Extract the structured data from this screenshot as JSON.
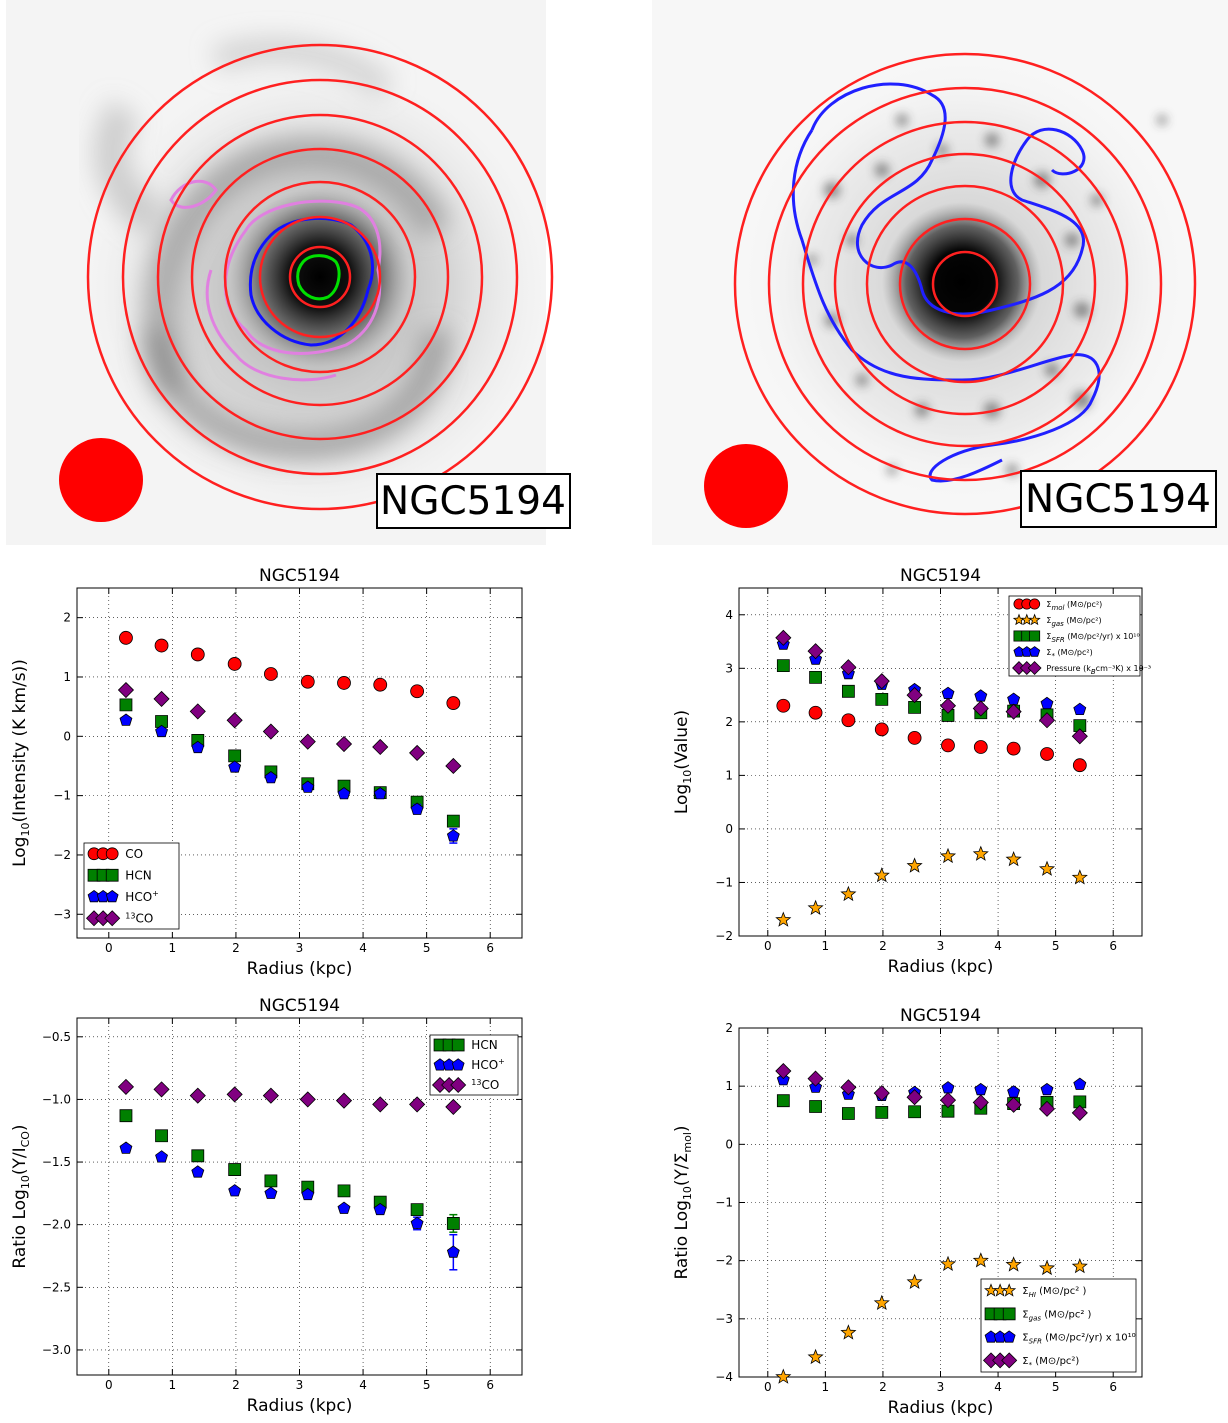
{
  "maps": [
    {
      "galaxy_label": "NGC5194",
      "contours": [
        "green",
        "blue",
        "violet"
      ]
    },
    {
      "galaxy_label": "NGC5194",
      "contours": [
        "blue"
      ]
    }
  ],
  "colors": {
    "co": "#ff0000",
    "hcn": "#008000",
    "hco": "#0000ff",
    "c13o": "#800080",
    "star": "#ffa500",
    "ring": "#ff0000"
  },
  "chart_data": [
    {
      "type": "scatter",
      "title": "NGC5194",
      "xlabel": "Radius (kpc)",
      "ylabel_main": "Log",
      "ylabel_sub": "10",
      "ylabel_rest": "(Intensity (K km/s))",
      "xlim": [
        -0.5,
        6.5
      ],
      "ylim": [
        -3.4,
        2.5
      ],
      "xticks": [
        "0",
        "1",
        "2",
        "3",
        "4",
        "5",
        "6"
      ],
      "yticks": [
        "2",
        "1",
        "0",
        "−1",
        "−2",
        "−3"
      ],
      "ytick_values": [
        2,
        1,
        0,
        -1,
        -2,
        -3
      ],
      "grid": true,
      "legend_position": "lower-left",
      "x": [
        0.27,
        0.83,
        1.4,
        1.98,
        2.55,
        3.13,
        3.7,
        4.27,
        4.85,
        5.42
      ],
      "series": [
        {
          "name": "CO",
          "marker": "circle",
          "color": "#ff0000",
          "values": [
            1.66,
            1.53,
            1.38,
            1.22,
            1.05,
            0.92,
            0.9,
            0.87,
            0.76,
            0.56
          ]
        },
        {
          "name": "HCN",
          "marker": "square",
          "color": "#008000",
          "values": [
            0.53,
            0.25,
            -0.07,
            -0.33,
            -0.6,
            -0.8,
            -0.84,
            -0.95,
            -1.11,
            -1.43
          ]
        },
        {
          "name": "HCO",
          "name_sup": "+",
          "marker": "pentagon",
          "color": "#0000ff",
          "values": [
            0.27,
            0.08,
            -0.19,
            -0.52,
            -0.7,
            -0.86,
            -0.97,
            -0.97,
            -1.23,
            -1.68
          ],
          "errors": [
            0,
            0,
            0,
            0,
            0,
            0,
            0,
            0,
            0.08,
            0.12
          ]
        },
        {
          "name": "CO",
          "name_pre": "13",
          "marker": "diamond",
          "color": "#800080",
          "values": [
            0.78,
            0.63,
            0.42,
            0.27,
            0.08,
            -0.09,
            -0.13,
            -0.18,
            -0.28,
            -0.5
          ]
        }
      ]
    },
    {
      "type": "scatter",
      "title": "NGC5194",
      "xlabel": "Radius (kpc)",
      "ylabel_main": "Log",
      "ylabel_sub": "10",
      "ylabel_rest": "(Value)",
      "xlim": [
        -0.5,
        6.5
      ],
      "ylim": [
        -2,
        4.5
      ],
      "xticks": [
        "0",
        "1",
        "2",
        "3",
        "4",
        "5",
        "6"
      ],
      "yticks": [
        "4",
        "3",
        "2",
        "1",
        "0",
        "−1",
        "−2"
      ],
      "ytick_values": [
        4,
        3,
        2,
        1,
        0,
        -1,
        -2
      ],
      "grid": true,
      "legend_position": "top-right",
      "x": [
        0.27,
        0.83,
        1.4,
        1.98,
        2.55,
        3.13,
        3.7,
        4.27,
        4.85,
        5.42
      ],
      "series": [
        {
          "name": "Σ",
          "name_sub": "mol",
          "name_rest": " (M⊙/pc²)",
          "marker": "circle",
          "color": "#ff0000",
          "values": [
            2.3,
            2.17,
            2.03,
            1.86,
            1.7,
            1.56,
            1.53,
            1.5,
            1.4,
            1.19
          ]
        },
        {
          "name": "Σ",
          "name_sub": "gas",
          "name_rest": " (M⊙/pc²)",
          "marker": "star",
          "color": "#ffa500",
          "values": [
            -1.7,
            -1.48,
            -1.22,
            -0.87,
            -0.69,
            -0.51,
            -0.47,
            -0.57,
            -0.75,
            -0.91
          ]
        },
        {
          "name": "Σ",
          "name_sub": "SFR",
          "name_rest": " (M⊙/pc²/yr) x 10¹⁰",
          "marker": "square",
          "color": "#008000",
          "values": [
            3.05,
            2.83,
            2.57,
            2.42,
            2.27,
            2.12,
            2.17,
            2.2,
            2.13,
            1.93
          ]
        },
        {
          "name": "Σ",
          "name_sub": "*",
          "name_rest": " (M⊙/pc²)",
          "marker": "pentagon",
          "color": "#0000ff",
          "values": [
            3.45,
            3.17,
            2.9,
            2.7,
            2.6,
            2.53,
            2.48,
            2.42,
            2.34,
            2.23
          ]
        },
        {
          "name": "Pressure (k",
          "name_sub": "B",
          "name_rest": "cm⁻³K) x 10⁻³",
          "marker": "diamond",
          "color": "#800080",
          "values": [
            3.57,
            3.32,
            3.02,
            2.76,
            2.5,
            2.3,
            2.25,
            2.19,
            2.03,
            1.73
          ]
        }
      ]
    },
    {
      "type": "scatter",
      "title": "NGC5194",
      "xlabel": "Radius (kpc)",
      "ylabel_main": "Ratio Log",
      "ylabel_sub": "10",
      "ylabel_rest": "(Y/I",
      "ylabel_rest_sub": "CO",
      "ylabel_close": ")",
      "xlim": [
        -0.5,
        6.5
      ],
      "ylim": [
        -3.2,
        -0.35
      ],
      "xticks": [
        "0",
        "1",
        "2",
        "3",
        "4",
        "5",
        "6"
      ],
      "yticks": [
        "−0.5",
        "−1.0",
        "−1.5",
        "−2.0",
        "−2.5",
        "−3.0"
      ],
      "ytick_values": [
        -0.5,
        -1.0,
        -1.5,
        -2.0,
        -2.5,
        -3.0
      ],
      "grid": true,
      "legend_position": "top-right",
      "x": [
        0.27,
        0.83,
        1.4,
        1.98,
        2.55,
        3.13,
        3.7,
        4.27,
        4.85,
        5.42
      ],
      "series": [
        {
          "name": "HCN",
          "marker": "square",
          "color": "#008000",
          "values": [
            -1.13,
            -1.29,
            -1.45,
            -1.56,
            -1.65,
            -1.7,
            -1.73,
            -1.82,
            -1.88,
            -1.99
          ],
          "errors": [
            0,
            0,
            0,
            0,
            0,
            0,
            0,
            0,
            0,
            0.07
          ]
        },
        {
          "name": "HCO",
          "name_sup": "+",
          "marker": "pentagon",
          "color": "#0000ff",
          "values": [
            -1.39,
            -1.46,
            -1.58,
            -1.73,
            -1.75,
            -1.76,
            -1.87,
            -1.88,
            -1.99,
            -2.22
          ],
          "errors": [
            0,
            0,
            0,
            0,
            0,
            0,
            0,
            0,
            0.05,
            0.14
          ]
        },
        {
          "name": "CO",
          "name_pre": "13",
          "marker": "diamond",
          "color": "#800080",
          "values": [
            -0.9,
            -0.92,
            -0.97,
            -0.96,
            -0.97,
            -1.0,
            -1.01,
            -1.04,
            -1.04,
            -1.06
          ]
        }
      ]
    },
    {
      "type": "scatter",
      "title": "NGC5194",
      "xlabel": "Radius (kpc)",
      "ylabel_main": "Ratio Log",
      "ylabel_sub": "10",
      "ylabel_rest": "(Y/Σ",
      "ylabel_rest_sub": "mol",
      "ylabel_close": ")",
      "xlim": [
        -0.5,
        6.5
      ],
      "ylim": [
        -4,
        2
      ],
      "xticks": [
        "0",
        "1",
        "2",
        "3",
        "4",
        "5",
        "6"
      ],
      "yticks": [
        "2",
        "1",
        "0",
        "−1",
        "−2",
        "−3",
        "−4"
      ],
      "ytick_values": [
        2,
        1,
        0,
        -1,
        -2,
        -3,
        -4
      ],
      "grid": true,
      "legend_position": "lower-right",
      "x": [
        0.27,
        0.83,
        1.4,
        1.98,
        2.55,
        3.13,
        3.7,
        4.27,
        4.85,
        5.42
      ],
      "series": [
        {
          "name": "Σ",
          "name_sub": "HI",
          "name_rest": " (M⊙/pc² )",
          "marker": "star",
          "color": "#ffa500",
          "values": [
            -4.0,
            -3.66,
            -3.24,
            -2.73,
            -2.37,
            -2.06,
            -2.0,
            -2.07,
            -2.13,
            -2.1
          ]
        },
        {
          "name": "Σ",
          "name_sub": "gas",
          "name_rest": " (M⊙/pc² )",
          "marker": "square",
          "color": "#008000",
          "values": [
            0.75,
            0.65,
            0.53,
            0.55,
            0.56,
            0.57,
            0.62,
            0.7,
            0.72,
            0.73
          ]
        },
        {
          "name": "Σ",
          "name_sub": "SFR",
          "name_rest": " (M⊙/pc²/yr) x 10¹⁰",
          "marker": "pentagon",
          "color": "#0000ff",
          "values": [
            1.11,
            0.98,
            0.86,
            0.84,
            0.89,
            0.97,
            0.94,
            0.9,
            0.94,
            1.03
          ]
        },
        {
          "name": "Σ",
          "name_sub": "*",
          "name_rest": " (M⊙/pc²)",
          "marker": "diamond",
          "color": "#800080",
          "values": [
            1.26,
            1.13,
            0.98,
            0.88,
            0.81,
            0.76,
            0.72,
            0.68,
            0.61,
            0.54
          ]
        }
      ]
    }
  ]
}
